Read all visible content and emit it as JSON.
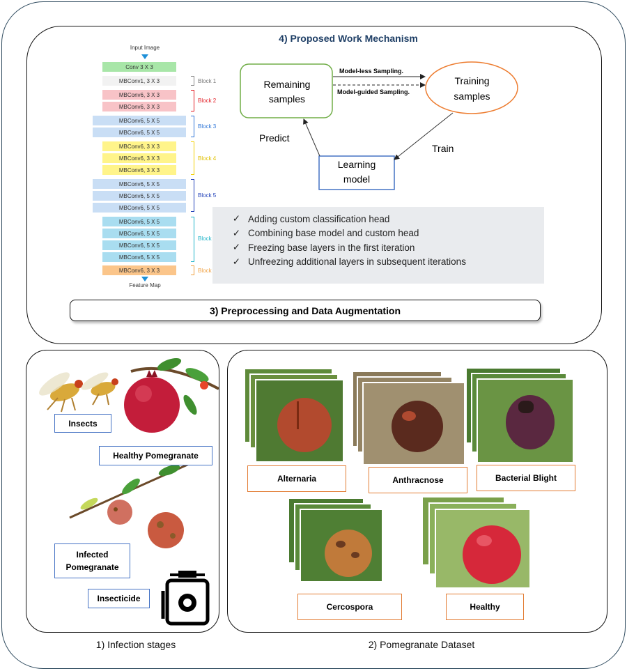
{
  "titles": {
    "proposed": "4) Proposed Work Mechanism",
    "preprocessing": "3) Preprocessing and Data Augmentation",
    "infection": "1) Infection stages",
    "dataset": "2) Pomegranate Dataset"
  },
  "network": {
    "input_label": "Input Image",
    "output_label": "Feature Map",
    "layers": [
      "Conv 3 X 3",
      "MBConv1, 3 X 3",
      "MBConv6, 3 X 3",
      "MBConv6, 3 X 3",
      "MBConv6, 5 X 5",
      "MBConv6, 5 X 5",
      "MBConv6, 3 X 3",
      "MBConv6, 3 X 3",
      "MBConv6, 3 X 3",
      "MBConv6, 5 X 5",
      "MBConv6, 5 X 5",
      "MBConv6, 5 X 5",
      "MBConv6, 5 X 5",
      "MBConv6, 5 X 5",
      "MBConv6, 5 X 5",
      "MBConv6, 5 X 5",
      "MBConv6, 3 X 3"
    ],
    "blocks": [
      "Block 1",
      "Block 2",
      "Block 3",
      "Block 4",
      "Block 5",
      "Block",
      "Block"
    ],
    "colors": {
      "conv": "#a8e6a8",
      "b1": "#f2f2f2",
      "b2": "#f8c3c7",
      "b3": "#c9def5",
      "b4": "#fff48a",
      "b5": "#c9def5",
      "b6": "#a9ddf0",
      "b7": "#fbc58a"
    }
  },
  "flow": {
    "remaining": "Remaining samples",
    "training": "Training samples",
    "learning": "Learning model",
    "model_less": "Model-less Sampling.",
    "model_guided": "Model-guided Sampling.",
    "predict": "Predict",
    "train": "Train"
  },
  "checklist": [
    "Adding custom classification head",
    "Combining base model and custom head",
    "Freezing base layers in the first iteration",
    "Unfreezing additional layers in subsequent iterations"
  ],
  "check_mark": "✓",
  "infection_labels": {
    "insects": "Insects",
    "healthy": "Healthy Pomegranate",
    "infected": "Infected Pomegranate",
    "insecticide": "Insecticide"
  },
  "dataset_labels": {
    "alternaria": "Alternaria",
    "anthracnose": "Anthracnose",
    "bacterial": "Bacterial Blight",
    "cercospora": "Cercospora",
    "healthy": "Healthy"
  }
}
